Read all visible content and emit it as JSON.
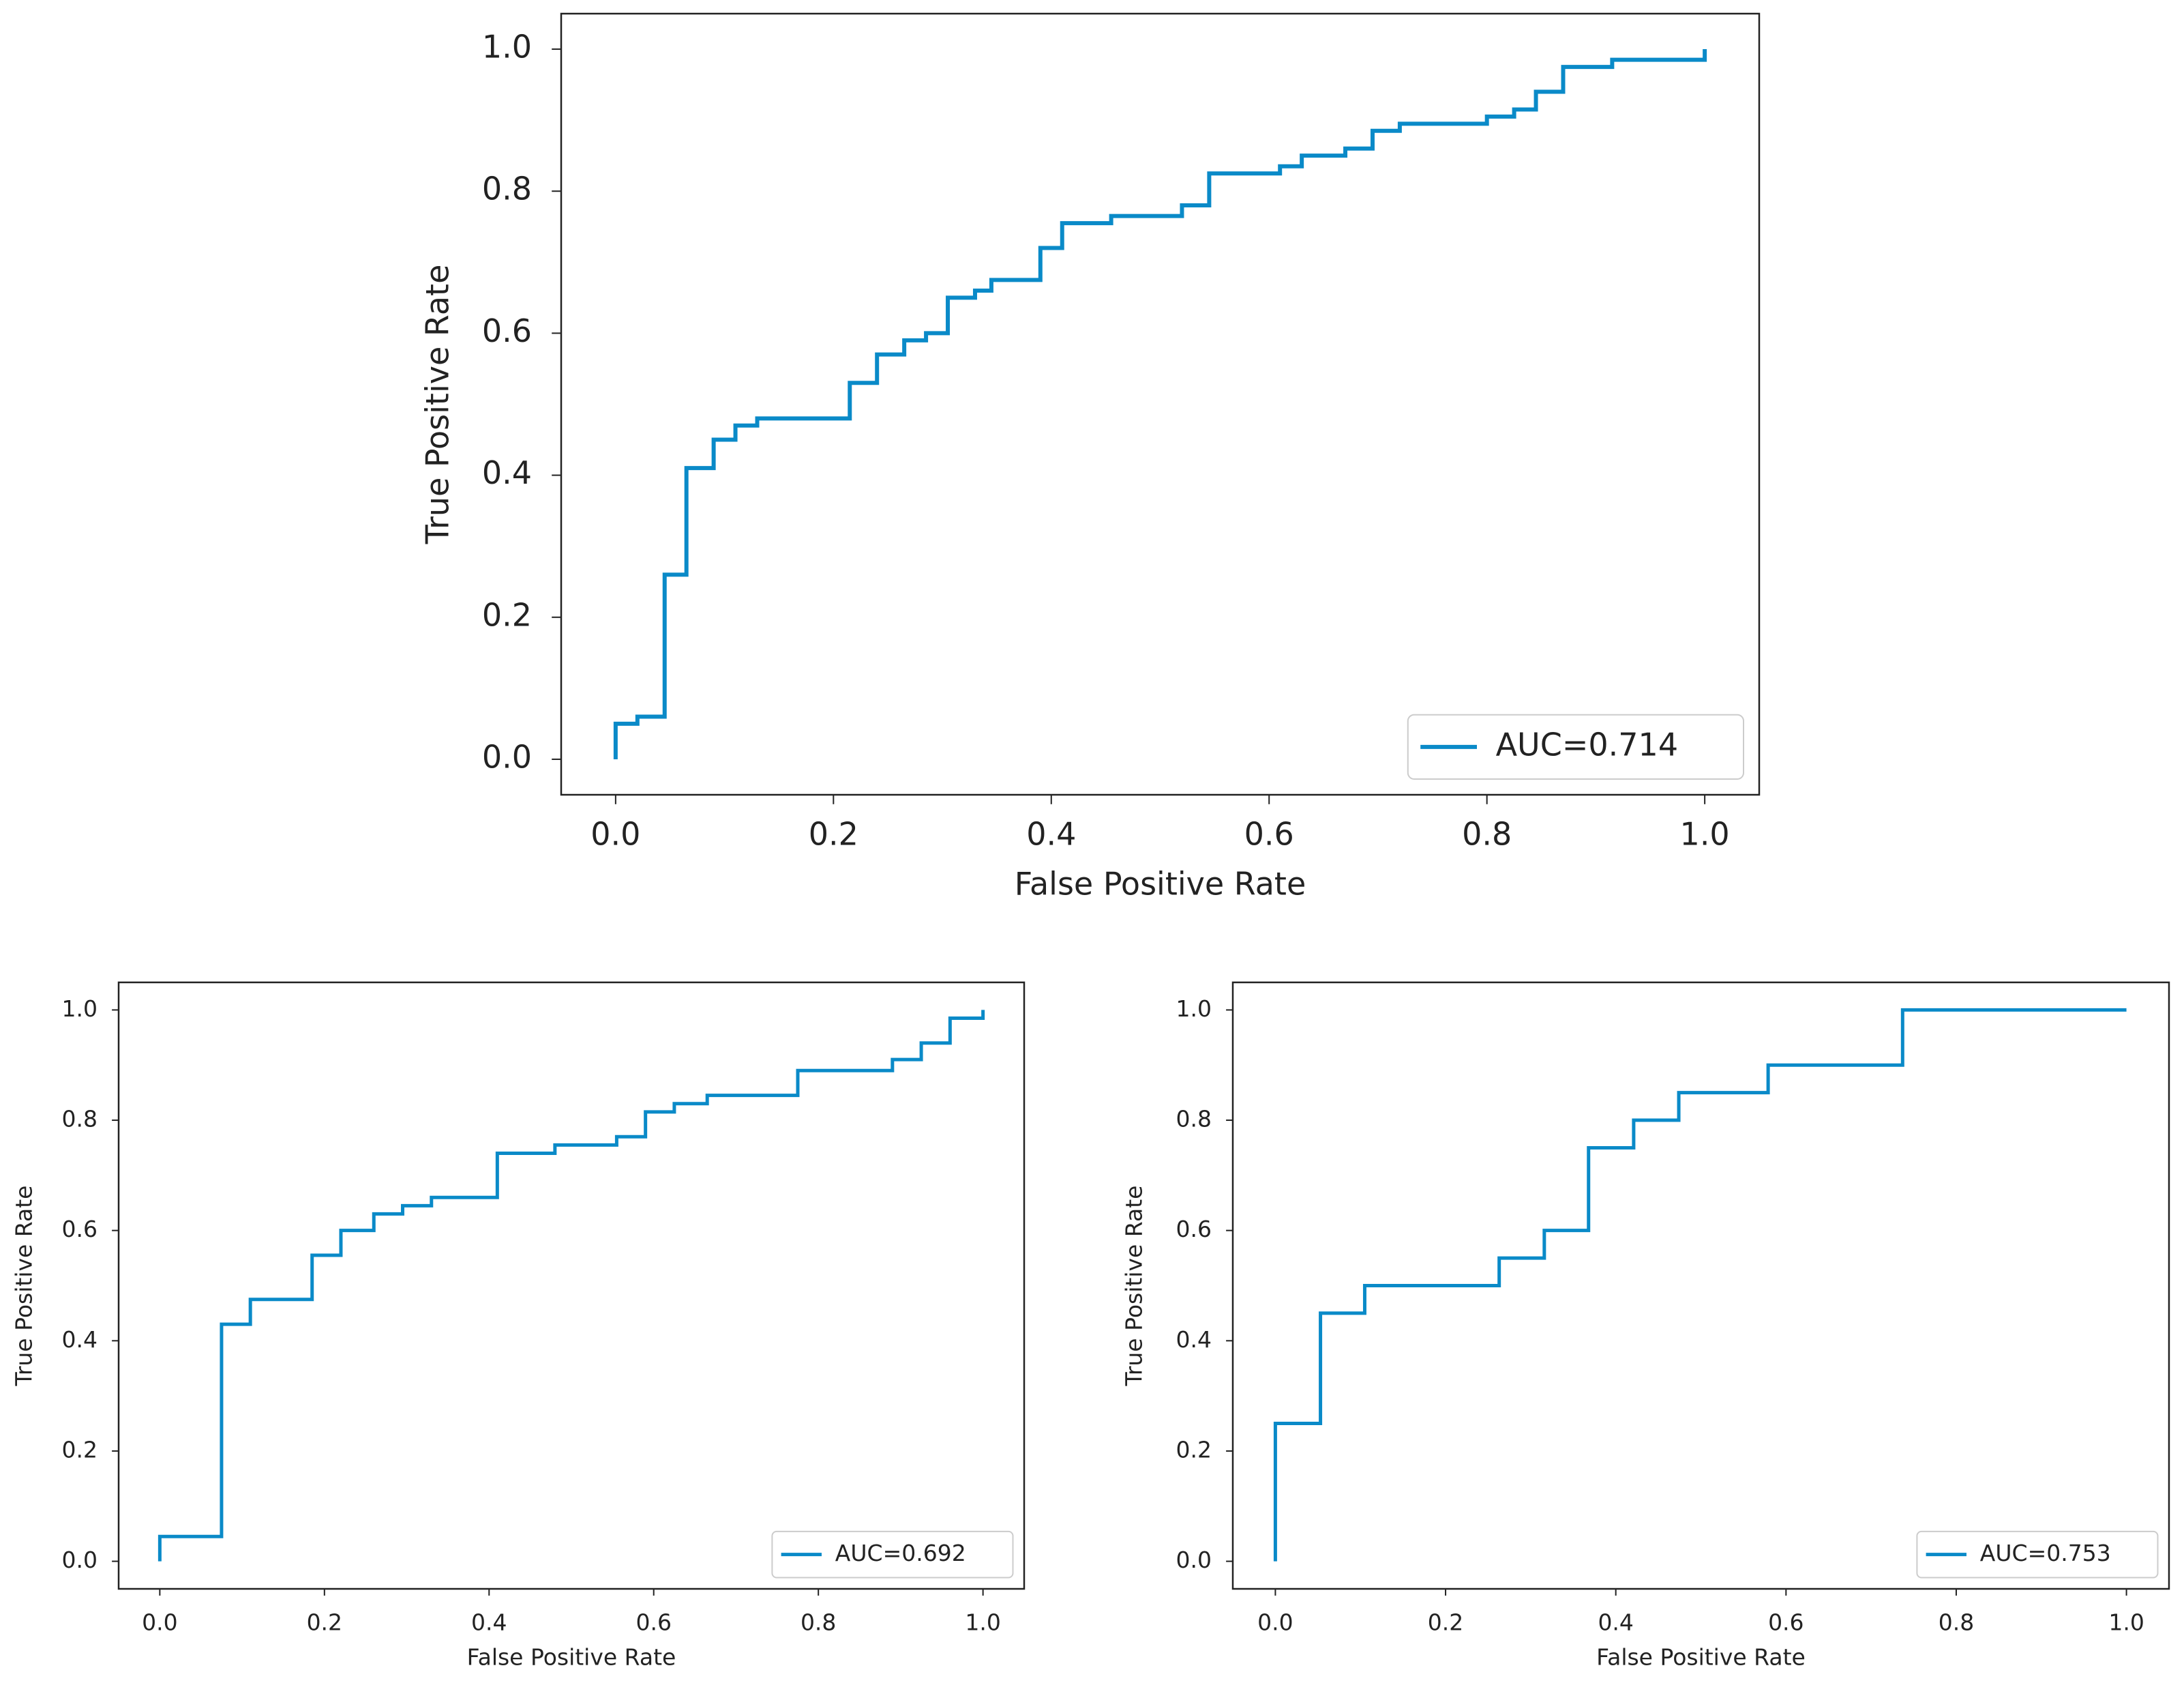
{
  "chart_data": [
    {
      "type": "line",
      "xlabel": "False Positive Rate",
      "ylabel": "True Positive Rate",
      "xlim": [
        -0.05,
        1.05
      ],
      "ylim": [
        -0.05,
        1.05
      ],
      "xticks": [
        {
          "value": 0,
          "label": "0.0"
        },
        0.2,
        0.4,
        0.6,
        0.8,
        {
          "value": 1,
          "label": "1.0"
        }
      ],
      "yticks": [
        {
          "value": 0,
          "label": "0.0"
        },
        0.2,
        0.4,
        0.6,
        0.8,
        {
          "value": 1,
          "label": "1.0"
        }
      ],
      "legend": "lower right",
      "x": [
        0,
        0,
        0.02,
        0.02,
        0.045,
        0.045,
        0.065,
        0.065,
        0.09,
        0.09,
        0.11,
        0.11,
        0.13,
        0.13,
        0.215,
        0.215,
        0.24,
        0.24,
        0.265,
        0.265,
        0.285,
        0.285,
        0.305,
        0.305,
        0.33,
        0.33,
        0.345,
        0.345,
        0.39,
        0.39,
        0.41,
        0.41,
        0.455,
        0.455,
        0.52,
        0.52,
        0.545,
        0.545,
        0.61,
        0.61,
        0.63,
        0.63,
        0.67,
        0.67,
        0.695,
        0.695,
        0.72,
        0.72,
        0.8,
        0.8,
        0.825,
        0.825,
        0.845,
        0.845,
        0.87,
        0.87,
        0.915,
        0.915,
        1,
        1
      ],
      "series": [
        {
          "name": "AUC=0.714",
          "color": "#0a8ac8",
          "values": [
            0,
            0.05,
            0.05,
            0.06,
            0.06,
            0.26,
            0.26,
            0.41,
            0.41,
            0.45,
            0.45,
            0.47,
            0.47,
            0.48,
            0.48,
            0.53,
            0.53,
            0.57,
            0.57,
            0.59,
            0.59,
            0.6,
            0.6,
            0.65,
            0.65,
            0.66,
            0.66,
            0.675,
            0.675,
            0.72,
            0.72,
            0.755,
            0.755,
            0.765,
            0.765,
            0.78,
            0.78,
            0.825,
            0.825,
            0.835,
            0.835,
            0.85,
            0.85,
            0.86,
            0.86,
            0.885,
            0.885,
            0.895,
            0.895,
            0.905,
            0.905,
            0.915,
            0.915,
            0.94,
            0.94,
            0.975,
            0.975,
            0.985,
            0.985,
            1
          ]
        }
      ]
    },
    {
      "type": "line",
      "xlabel": "False Positive Rate",
      "ylabel": "True Positive Rate",
      "xlim": [
        -0.05,
        1.05
      ],
      "ylim": [
        -0.05,
        1.05
      ],
      "xticks": [
        {
          "value": 0,
          "label": "0.0"
        },
        0.2,
        0.4,
        0.6,
        0.8,
        {
          "value": 1,
          "label": "1.0"
        }
      ],
      "yticks": [
        {
          "value": 0,
          "label": "0.0"
        },
        0.2,
        0.4,
        0.6,
        0.8,
        {
          "value": 1,
          "label": "1.0"
        }
      ],
      "legend": "lower right",
      "x": [
        0,
        0,
        0.075,
        0.075,
        0.11,
        0.11,
        0.185,
        0.185,
        0.22,
        0.22,
        0.26,
        0.26,
        0.295,
        0.295,
        0.33,
        0.33,
        0.41,
        0.41,
        0.48,
        0.48,
        0.555,
        0.555,
        0.59,
        0.59,
        0.625,
        0.625,
        0.665,
        0.665,
        0.775,
        0.775,
        0.89,
        0.89,
        0.925,
        0.925,
        0.96,
        0.96,
        1,
        1
      ],
      "series": [
        {
          "name": "AUC=0.692",
          "color": "#0a8ac8",
          "values": [
            0,
            0.045,
            0.045,
            0.43,
            0.43,
            0.475,
            0.475,
            0.555,
            0.555,
            0.6,
            0.6,
            0.63,
            0.63,
            0.645,
            0.645,
            0.66,
            0.66,
            0.74,
            0.74,
            0.755,
            0.755,
            0.77,
            0.77,
            0.815,
            0.815,
            0.83,
            0.83,
            0.845,
            0.845,
            0.89,
            0.89,
            0.91,
            0.91,
            0.94,
            0.94,
            0.985,
            0.985,
            1
          ]
        }
      ]
    },
    {
      "type": "line",
      "xlabel": "False Positive Rate",
      "ylabel": "True Positive Rate",
      "xlim": [
        -0.05,
        1.05
      ],
      "ylim": [
        -0.05,
        1.05
      ],
      "xticks": [
        {
          "value": 0,
          "label": "0.0"
        },
        0.2,
        0.4,
        0.6,
        0.8,
        {
          "value": 1,
          "label": "1.0"
        }
      ],
      "yticks": [
        {
          "value": 0,
          "label": "0.0"
        },
        0.2,
        0.4,
        0.6,
        0.8,
        {
          "value": 1,
          "label": "1.0"
        }
      ],
      "legend": "lower right",
      "x": [
        0,
        0,
        0.053,
        0.053,
        0.105,
        0.105,
        0.263,
        0.263,
        0.316,
        0.316,
        0.368,
        0.368,
        0.421,
        0.421,
        0.474,
        0.474,
        0.579,
        0.579,
        0.737,
        0.737,
        1
      ],
      "series": [
        {
          "name": "AUC=0.753",
          "color": "#0a8ac8",
          "values": [
            0,
            0.25,
            0.25,
            0.45,
            0.45,
            0.5,
            0.5,
            0.55,
            0.55,
            0.6,
            0.6,
            0.75,
            0.75,
            0.8,
            0.8,
            0.85,
            0.85,
            0.9,
            0.9,
            1,
            1
          ]
        }
      ]
    }
  ]
}
